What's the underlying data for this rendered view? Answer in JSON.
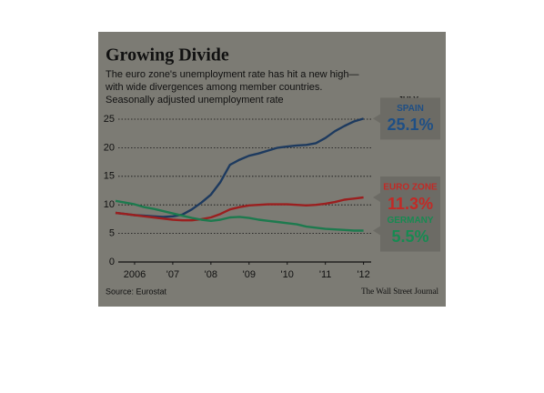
{
  "chart_data": {
    "type": "line",
    "title": "Growing Divide",
    "subtitle": [
      "The euro zone's unemployment rate has hit a new high—",
      "with wide divergences among member countries.",
      "Seasonally adjusted unemployment rate"
    ],
    "period_label": "JULY",
    "source": "Source: Eurostat",
    "credit": "The Wall Street Journal",
    "x": [
      2006,
      2006.25,
      2006.5,
      2006.75,
      2007,
      2007.25,
      2007.5,
      2007.75,
      2008,
      2008.25,
      2008.5,
      2008.75,
      2009,
      2009.25,
      2009.5,
      2009.75,
      2010,
      2010.25,
      2010.5,
      2010.75,
      2011,
      2011.25,
      2011.5,
      2011.75,
      2012,
      2012.25,
      2012.5
    ],
    "xlim": [
      2006,
      2012.7
    ],
    "xticks": [
      {
        "value": 2006.5,
        "label": "2006"
      },
      {
        "value": 2007.5,
        "label": "'07"
      },
      {
        "value": 2008.5,
        "label": "'08"
      },
      {
        "value": 2009.5,
        "label": "'09"
      },
      {
        "value": 2010.5,
        "label": "'10"
      },
      {
        "value": 2011.5,
        "label": "'11"
      },
      {
        "value": 2012.5,
        "label": "'12"
      }
    ],
    "ylim": [
      0,
      25
    ],
    "yticks": [
      0,
      5,
      10,
      15,
      20,
      25
    ],
    "grid": true,
    "series": [
      {
        "name": "SPAIN",
        "color": "#1d3a5f",
        "label_color": "#1f4f85",
        "end_label": "25.1%",
        "values": [
          8.6,
          8.4,
          8.2,
          8.1,
          8.0,
          7.9,
          8.0,
          8.3,
          9.2,
          10.4,
          11.8,
          14.0,
          17.0,
          17.9,
          18.6,
          19.0,
          19.5,
          20.0,
          20.2,
          20.4,
          20.5,
          20.8,
          21.7,
          22.9,
          23.8,
          24.6,
          25.1
        ]
      },
      {
        "name": "EURO ZONE",
        "color": "#9b1f1f",
        "label_color": "#c22a26",
        "end_label": "11.3%",
        "values": [
          8.6,
          8.4,
          8.2,
          8.0,
          7.8,
          7.6,
          7.4,
          7.3,
          7.3,
          7.5,
          7.8,
          8.4,
          9.2,
          9.6,
          9.9,
          10.0,
          10.1,
          10.1,
          10.1,
          10.0,
          9.9,
          10.0,
          10.2,
          10.5,
          10.9,
          11.1,
          11.3
        ]
      },
      {
        "name": "GERMANY",
        "color": "#1d7a4e",
        "label_color": "#188a52",
        "end_label": "5.5%",
        "values": [
          10.7,
          10.4,
          10.1,
          9.6,
          9.3,
          8.9,
          8.5,
          8.1,
          7.7,
          7.4,
          7.2,
          7.4,
          7.8,
          7.9,
          7.7,
          7.4,
          7.2,
          7.0,
          6.8,
          6.6,
          6.2,
          6.0,
          5.8,
          5.7,
          5.6,
          5.5,
          5.5
        ]
      }
    ]
  }
}
